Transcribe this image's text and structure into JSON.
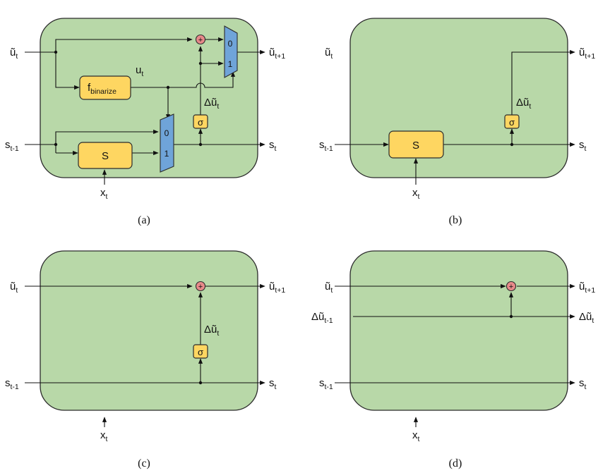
{
  "panels": {
    "a": {
      "caption": "(a)",
      "in_u": [
        "ũ",
        "t"
      ],
      "out_u": [
        "ũ",
        "t+1"
      ],
      "in_s": [
        "s",
        "t-1"
      ],
      "out_s": [
        "s",
        "t"
      ],
      "in_x": [
        "x",
        "t"
      ],
      "fbin": [
        "f",
        "binarize"
      ],
      "u_label": [
        "u",
        "t"
      ],
      "delta": [
        "Δũ",
        "t"
      ],
      "s_box": "S",
      "sigma": "σ",
      "plus": "+",
      "mux_top_0": "0",
      "mux_top_1": "1",
      "mux_bot_0": "0",
      "mux_bot_1": "1"
    },
    "b": {
      "caption": "(b)",
      "in_u": [
        "ũ",
        "t"
      ],
      "out_u": [
        "ũ",
        "t+1"
      ],
      "in_s": [
        "s",
        "t-1"
      ],
      "out_s": [
        "s",
        "t"
      ],
      "in_x": [
        "x",
        "t"
      ],
      "delta": [
        "Δũ",
        "t"
      ],
      "s_box": "S",
      "sigma": "σ"
    },
    "c": {
      "caption": "(c)",
      "in_u": [
        "ũ",
        "t"
      ],
      "out_u": [
        "ũ",
        "t+1"
      ],
      "in_s": [
        "s",
        "t-1"
      ],
      "out_s": [
        "s",
        "t"
      ],
      "in_x": [
        "x",
        "t"
      ],
      "delta": [
        "Δũ",
        "t"
      ],
      "sigma": "σ",
      "plus": "+"
    },
    "d": {
      "caption": "(d)",
      "in_u": [
        "ũ",
        "t"
      ],
      "out_u": [
        "ũ",
        "t+1"
      ],
      "in_d": [
        "Δũ",
        "t-1"
      ],
      "out_d": [
        "Δũ",
        "t"
      ],
      "in_s": [
        "s",
        "t-1"
      ],
      "out_s": [
        "s",
        "t"
      ],
      "in_x": [
        "x",
        "t"
      ],
      "plus": "+"
    }
  }
}
